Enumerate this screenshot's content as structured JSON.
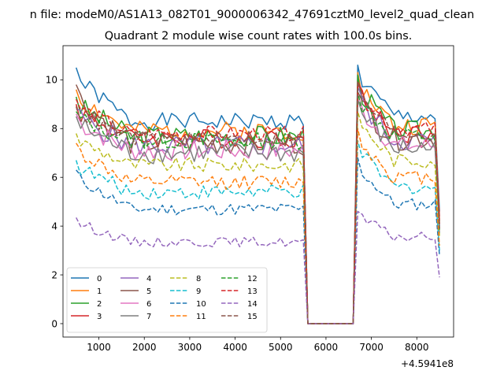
{
  "suptitle": "n file: modeM0/AS1A13_082T01_9000006342_47691cztM0_level2_quad_clean",
  "chart_data": {
    "type": "line",
    "title": "Quadrant 2 module wise count rates with 100.0s bins.",
    "xlabel": "",
    "ylabel": "",
    "x_offset_label": "+4.5941e8",
    "xlim": [
      210,
      8810
    ],
    "ylim": [
      -0.55,
      11.4
    ],
    "x_ticks": [
      1000,
      2000,
      3000,
      4000,
      5000,
      6000,
      7000,
      8000
    ],
    "y_ticks": [
      0,
      2,
      4,
      6,
      8,
      10
    ],
    "grid": false,
    "legend_position": "lower-left",
    "x_start": 500,
    "x_step": 100,
    "x_end": 8500,
    "gap": {
      "from": 5600,
      "to": 6600,
      "value": 0
    },
    "series": [
      {
        "name": "0",
        "color": "#1f77b4",
        "dash": "solid",
        "level": 8.3,
        "amp": 0.35,
        "start": 10.5,
        "post": 10.6,
        "end": 4.6,
        "seed": 1
      },
      {
        "name": "1",
        "color": "#ff7f0e",
        "dash": "solid",
        "level": 7.9,
        "amp": 0.4,
        "start": 9.6,
        "post": 10.3,
        "end": 4.2,
        "seed": 2
      },
      {
        "name": "2",
        "color": "#2ca02c",
        "dash": "solid",
        "level": 7.7,
        "amp": 0.45,
        "start": 9.3,
        "post": 10.2,
        "end": 4.0,
        "seed": 3
      },
      {
        "name": "3",
        "color": "#d62728",
        "dash": "solid",
        "level": 7.6,
        "amp": 0.4,
        "start": 9.0,
        "post": 9.9,
        "end": 4.4,
        "seed": 4
      },
      {
        "name": "4",
        "color": "#9467bd",
        "dash": "solid",
        "level": 7.3,
        "amp": 0.45,
        "start": 8.8,
        "post": 9.7,
        "end": 4.0,
        "seed": 5
      },
      {
        "name": "5",
        "color": "#8c564b",
        "dash": "solid",
        "level": 7.4,
        "amp": 0.5,
        "start": 9.8,
        "post": 9.5,
        "end": 4.2,
        "seed": 6
      },
      {
        "name": "6",
        "color": "#e377c2",
        "dash": "solid",
        "level": 7.1,
        "amp": 0.45,
        "start": 8.6,
        "post": 9.4,
        "end": 3.9,
        "seed": 7
      },
      {
        "name": "7",
        "color": "#7f7f7f",
        "dash": "solid",
        "level": 7.0,
        "amp": 0.45,
        "start": 8.5,
        "post": 9.2,
        "end": 3.7,
        "seed": 8
      },
      {
        "name": "8",
        "color": "#bcbd22",
        "dash": "dashed",
        "level": 6.5,
        "amp": 0.3,
        "start": 7.8,
        "post": 8.7,
        "end": 3.6,
        "seed": 9
      },
      {
        "name": "9",
        "color": "#17becf",
        "dash": "dashed",
        "level": 5.4,
        "amp": 0.3,
        "start": 6.7,
        "post": 7.5,
        "end": 3.0,
        "seed": 10
      },
      {
        "name": "10",
        "color": "#1f77b4",
        "dash": "dashed",
        "level": 4.7,
        "amp": 0.25,
        "start": 6.3,
        "post": 6.8,
        "end": 2.8,
        "seed": 11
      },
      {
        "name": "11",
        "color": "#ff7f0e",
        "dash": "dashed",
        "level": 5.8,
        "amp": 0.3,
        "start": 7.4,
        "post": 8.0,
        "end": 3.2,
        "seed": 12
      },
      {
        "name": "12",
        "color": "#2ca02c",
        "dash": "dashed",
        "level": 7.5,
        "amp": 0.35,
        "start": 8.7,
        "post": 9.5,
        "end": 3.8,
        "seed": 13
      },
      {
        "name": "13",
        "color": "#d62728",
        "dash": "dashed",
        "level": 7.8,
        "amp": 0.3,
        "start": 9.2,
        "post": 9.8,
        "end": 4.1,
        "seed": 14
      },
      {
        "name": "14",
        "color": "#9467bd",
        "dash": "dashed",
        "level": 3.35,
        "amp": 0.2,
        "start": 4.35,
        "post": 4.6,
        "end": 1.9,
        "seed": 15
      },
      {
        "name": "15",
        "color": "#8c564b",
        "dash": "dashed",
        "level": 7.6,
        "amp": 0.3,
        "start": 8.9,
        "post": 9.9,
        "end": 3.9,
        "seed": 16
      }
    ]
  }
}
